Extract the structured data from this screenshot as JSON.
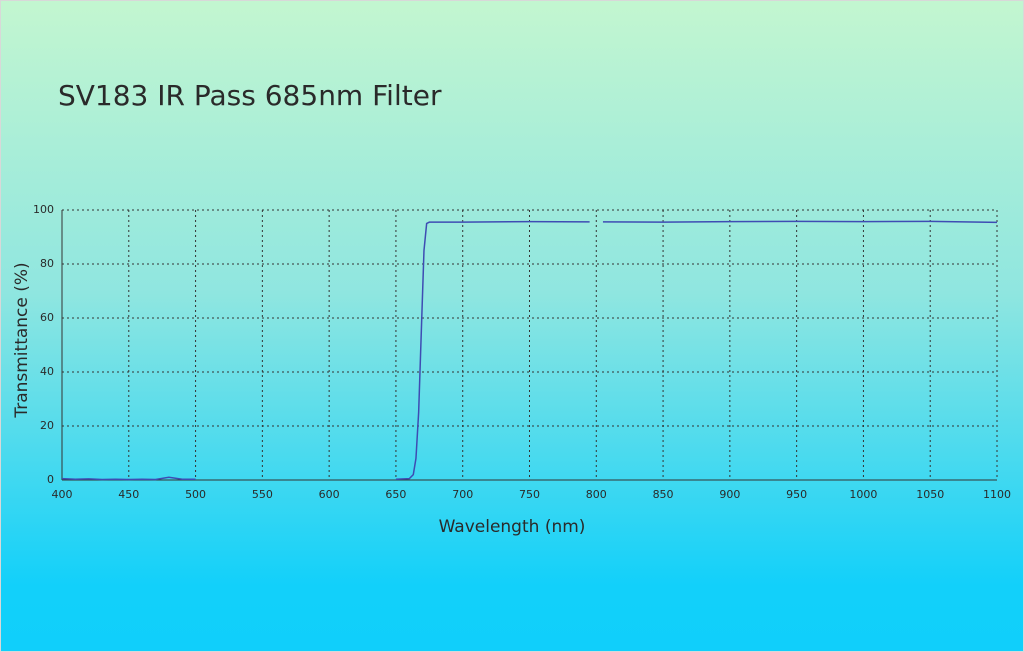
{
  "chart_data": {
    "type": "line",
    "title": "SV183 IR Pass 685nm Filter",
    "x_label": "Wavelength (nm)",
    "y_label": "Transmittance (%)",
    "x": [
      400,
      410,
      420,
      430,
      440,
      450,
      460,
      470,
      480,
      490,
      500,
      575,
      650,
      660,
      663,
      665,
      667,
      669,
      671,
      673,
      675,
      700,
      750,
      795,
      800,
      805,
      850,
      900,
      950,
      1000,
      1050,
      1100
    ],
    "values": [
      0.5,
      0.3,
      0.4,
      0.2,
      0.3,
      0.2,
      0.3,
      0.2,
      1,
      0.3,
      0.3,
      null,
      0.3,
      0.5,
      2,
      8,
      25,
      55,
      85,
      95,
      95.5,
      95.5,
      95.7,
      95.6,
      null,
      95.6,
      95.5,
      95.7,
      95.8,
      95.7,
      95.8,
      95.4
    ],
    "color": "#3e4cb3",
    "xlim": [
      400,
      1100
    ],
    "xticks": [
      400,
      450,
      500,
      550,
      600,
      650,
      700,
      750,
      800,
      850,
      900,
      950,
      1000,
      1050,
      1100
    ],
    "ylim": [
      0,
      100
    ],
    "yticks": [
      0,
      20,
      40,
      60,
      80,
      100
    ],
    "grid": true
  }
}
